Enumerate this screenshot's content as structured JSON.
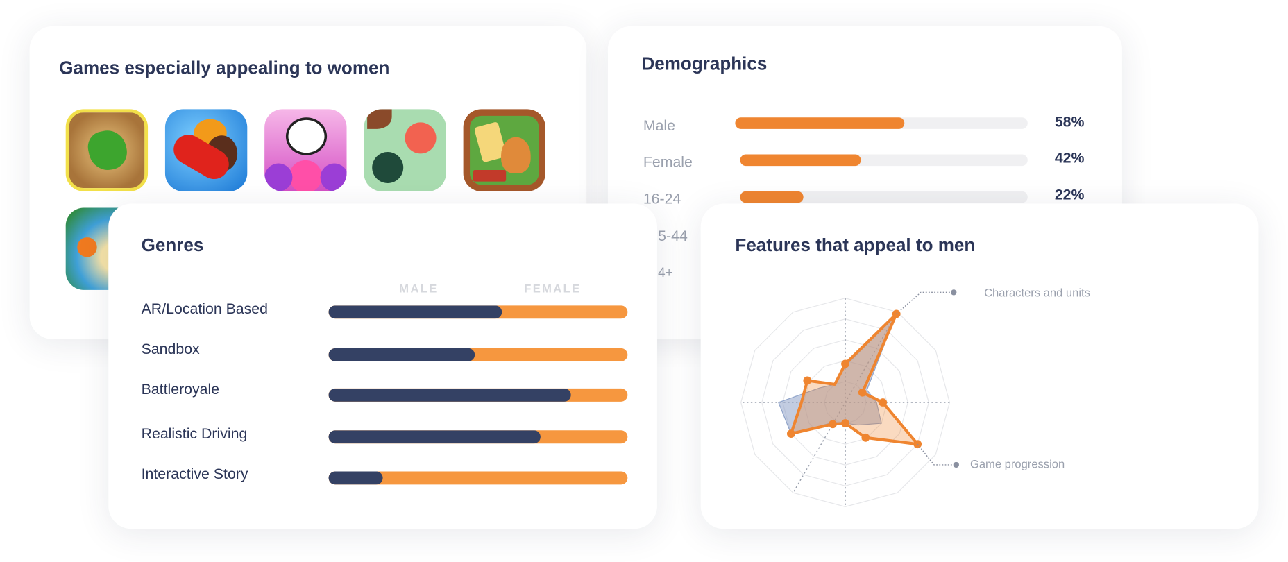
{
  "women_games": {
    "title": "Games especially appealing to women",
    "icons": [
      "jigsaw-puzzle-icon",
      "candy-crush-icon",
      "panda-pop-icon",
      "doodle-game-icon",
      "solitaire-tripeaks-icon",
      "words-game-icon"
    ]
  },
  "demographics": {
    "title": "Demographics",
    "rows": [
      {
        "label": "Male",
        "value": 58,
        "pct": "58%"
      },
      {
        "label": "Female",
        "value": 42,
        "pct": "42%"
      },
      {
        "label": "16-24",
        "value": 22,
        "pct": "22%"
      },
      {
        "label": "5-44"
      },
      {
        "label": "4+"
      }
    ],
    "bar_color": "#ef8530"
  },
  "genres": {
    "title": "Genres",
    "male_header": "MALE",
    "female_header": "FEMALE",
    "male_color": "#344164",
    "female_color": "#f6973f",
    "rows": [
      {
        "label": "AR/Location Based",
        "male": 58
      },
      {
        "label": "Sandbox",
        "male": 49
      },
      {
        "label": "Battleroyale",
        "male": 81
      },
      {
        "label": "Realistic Driving",
        "male": 71
      },
      {
        "label": "Interactive Story",
        "male": 18
      }
    ]
  },
  "features": {
    "title": "Features that appeal to men",
    "chart_data": {
      "type": "radar",
      "axes_count": 12,
      "rings": 5,
      "range": [
        0,
        100
      ],
      "axis_labels": [
        {
          "axis": 1,
          "text": "Characters and units"
        },
        {
          "axis": 4,
          "text": "Game progression"
        }
      ],
      "series": [
        {
          "color": "#8fa3c9",
          "values": [
            35,
            96,
            24,
            30,
            40,
            25,
            20,
            22,
            60,
            64,
            28,
            20
          ]
        },
        {
          "color": "#ef8530",
          "values": [
            37,
            98,
            19,
            36,
            80,
            39,
            20,
            24,
            60,
            42,
            42,
            20
          ]
        }
      ]
    }
  }
}
